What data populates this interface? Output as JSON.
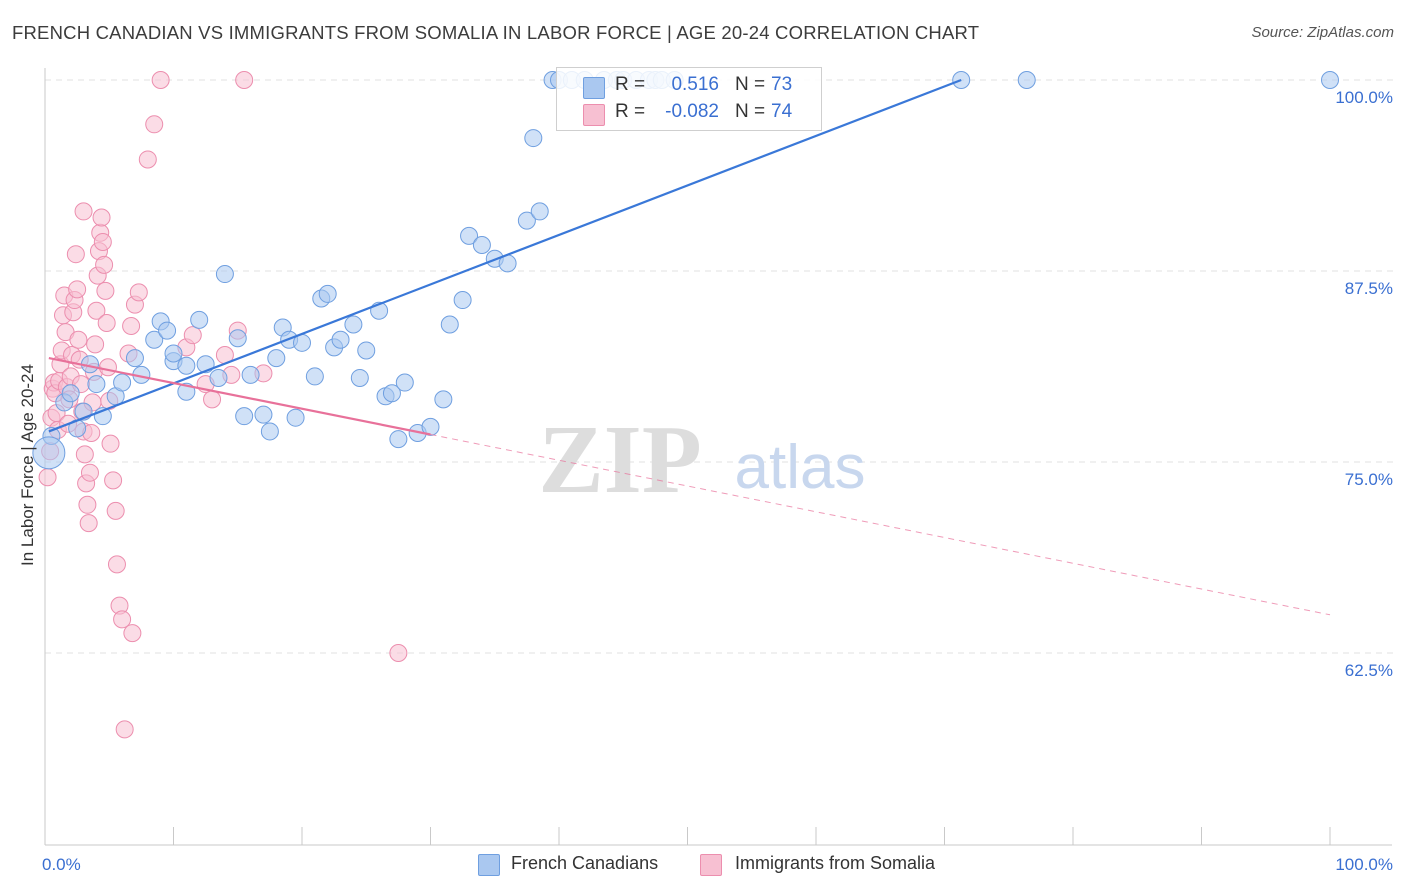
{
  "title": "FRENCH CANADIAN VS IMMIGRANTS FROM SOMALIA IN LABOR FORCE | AGE 20-24 CORRELATION CHART",
  "source": "Source: ZipAtlas.com",
  "watermark": {
    "zip": "ZIP",
    "atlas": "atlas"
  },
  "legend": {
    "r_label": "R =",
    "n_label": "N =",
    "rows": [
      {
        "r": "0.516",
        "n": "73",
        "fill": "#aac8f0",
        "stroke": "#6f9fe0"
      },
      {
        "r": "-0.082",
        "n": "74",
        "fill": "#f7c0d2",
        "stroke": "#ec8eae"
      }
    ]
  },
  "bottom_legend": [
    {
      "label": "French Canadians",
      "fill": "#aac8f0",
      "stroke": "#6f9fe0"
    },
    {
      "label": "Immigrants from Somalia",
      "fill": "#f7c0d2",
      "stroke": "#ec8eae"
    }
  ],
  "chart_data": {
    "type": "scatter",
    "title": "FRENCH CANADIAN VS IMMIGRANTS FROM SOMALIA IN LABOR FORCE | AGE 20-24 CORRELATION CHART",
    "xlabel": "",
    "ylabel": "In Labor Force | Age 20-24",
    "xlim": [
      0,
      100
    ],
    "ylim": [
      51.5,
      101.5
    ],
    "x_tick_labels": [
      {
        "value": 0,
        "label": "0.0%"
      },
      {
        "value": 100,
        "label": "100.0%"
      }
    ],
    "y_tick_labels": [
      {
        "value": 100,
        "label": "100.0%"
      },
      {
        "value": 87.5,
        "label": "87.5%"
      },
      {
        "value": 75,
        "label": "75.0%"
      },
      {
        "value": 62.5,
        "label": "62.5%"
      }
    ],
    "x_minor_ticks": [
      0,
      10,
      20,
      30,
      40,
      50,
      60,
      70,
      80,
      90,
      100
    ],
    "grid": true,
    "colors": {
      "blue": "#3a78d8",
      "pink": "#e8719a",
      "tick_label": "#3a6fd1"
    },
    "series": [
      {
        "name": "French Canadians",
        "r": 0.516,
        "n": 73,
        "trend": {
          "x0": 0.3,
          "y0": 77.0,
          "x1": 71.3,
          "y1": 100.0,
          "dashed_to": null
        },
        "points": [
          [
            0.5,
            76.7
          ],
          [
            1.5,
            78.9
          ],
          [
            2,
            79.5
          ],
          [
            2.5,
            77.2
          ],
          [
            3,
            78.3
          ],
          [
            4,
            80.1
          ],
          [
            3.5,
            81.4
          ],
          [
            4.5,
            78.0
          ],
          [
            5.5,
            79.3
          ],
          [
            6,
            80.2
          ],
          [
            7,
            81.8
          ],
          [
            7.5,
            80.7
          ],
          [
            8.5,
            83.0
          ],
          [
            9,
            84.2
          ],
          [
            10,
            81.6
          ],
          [
            9.5,
            83.6
          ],
          [
            10,
            82.1
          ],
          [
            11,
            81.3
          ],
          [
            11,
            79.6
          ],
          [
            12,
            84.3
          ],
          [
            12.5,
            81.4
          ],
          [
            13.5,
            80.5
          ],
          [
            14,
            87.3
          ],
          [
            15,
            83.1
          ],
          [
            15.5,
            78.0
          ],
          [
            16,
            80.7
          ],
          [
            17,
            78.1
          ],
          [
            17.5,
            77.0
          ],
          [
            18,
            81.8
          ],
          [
            18.5,
            83.8
          ],
          [
            19,
            83.0
          ],
          [
            19.5,
            77.9
          ],
          [
            20,
            82.8
          ],
          [
            21,
            80.6
          ],
          [
            21.5,
            85.7
          ],
          [
            22,
            86.0
          ],
          [
            22.5,
            82.5
          ],
          [
            23,
            83.0
          ],
          [
            24,
            84.0
          ],
          [
            24.5,
            80.5
          ],
          [
            25,
            82.3
          ],
          [
            26,
            84.9
          ],
          [
            26.5,
            79.3
          ],
          [
            27,
            79.5
          ],
          [
            27.5,
            76.5
          ],
          [
            28,
            80.2
          ],
          [
            29,
            76.9
          ],
          [
            30,
            77.3
          ],
          [
            31,
            79.1
          ],
          [
            31.5,
            84.0
          ],
          [
            32.5,
            85.6
          ],
          [
            33,
            89.8
          ],
          [
            34,
            89.2
          ],
          [
            35,
            88.3
          ],
          [
            36,
            88.0
          ],
          [
            37.5,
            90.8
          ],
          [
            38,
            96.2
          ],
          [
            38.5,
            91.4
          ],
          [
            39.5,
            100
          ],
          [
            40,
            100
          ],
          [
            41,
            100
          ],
          [
            42,
            100
          ],
          [
            43.5,
            100
          ],
          [
            44.5,
            100
          ],
          [
            45,
            100
          ],
          [
            46,
            100
          ],
          [
            47,
            100
          ],
          [
            47.5,
            100
          ],
          [
            48,
            100
          ],
          [
            49,
            100
          ],
          [
            71.3,
            100
          ],
          [
            76.4,
            100
          ],
          [
            100,
            100
          ]
        ]
      },
      {
        "name": "Immigrants from Somalia",
        "r": -0.082,
        "n": 74,
        "trend": {
          "x0": 0.3,
          "y0": 81.8,
          "x1": 30.0,
          "y1": 76.8,
          "dashed_to": {
            "x": 100,
            "y": 65.0
          }
        },
        "points": [
          [
            0.2,
            74.0
          ],
          [
            0.4,
            75.7
          ],
          [
            0.5,
            77.9
          ],
          [
            0.6,
            79.8
          ],
          [
            0.7,
            80.2
          ],
          [
            0.8,
            79.5
          ],
          [
            0.9,
            78.2
          ],
          [
            1.0,
            77.1
          ],
          [
            1.1,
            80.3
          ],
          [
            1.2,
            81.4
          ],
          [
            1.3,
            82.3
          ],
          [
            1.4,
            84.6
          ],
          [
            1.5,
            85.9
          ],
          [
            1.6,
            83.5
          ],
          [
            1.7,
            79.9
          ],
          [
            1.8,
            77.5
          ],
          [
            1.9,
            79.1
          ],
          [
            2.0,
            80.6
          ],
          [
            2.1,
            82.0
          ],
          [
            2.2,
            84.8
          ],
          [
            2.3,
            85.6
          ],
          [
            2.4,
            88.6
          ],
          [
            2.5,
            86.3
          ],
          [
            2.6,
            83.0
          ],
          [
            2.7,
            81.7
          ],
          [
            2.8,
            80.1
          ],
          [
            2.9,
            78.3
          ],
          [
            3.0,
            77.0
          ],
          [
            3.1,
            75.5
          ],
          [
            3.2,
            73.6
          ],
          [
            3.3,
            72.2
          ],
          [
            3.4,
            71.0
          ],
          [
            3.5,
            74.3
          ],
          [
            3.6,
            76.9
          ],
          [
            3.7,
            78.9
          ],
          [
            3.8,
            80.9
          ],
          [
            3.9,
            82.7
          ],
          [
            4.0,
            84.9
          ],
          [
            4.1,
            87.2
          ],
          [
            4.2,
            88.8
          ],
          [
            4.3,
            90.0
          ],
          [
            4.4,
            91.0
          ],
          [
            4.5,
            89.4
          ],
          [
            4.6,
            87.9
          ],
          [
            4.7,
            86.2
          ],
          [
            4.8,
            84.1
          ],
          [
            4.9,
            81.2
          ],
          [
            5.0,
            79.0
          ],
          [
            5.1,
            76.2
          ],
          [
            5.3,
            73.8
          ],
          [
            5.5,
            71.8
          ],
          [
            5.6,
            68.3
          ],
          [
            5.8,
            65.6
          ],
          [
            6.0,
            64.7
          ],
          [
            6.2,
            57.5
          ],
          [
            6.8,
            63.8
          ],
          [
            6.5,
            82.1
          ],
          [
            6.7,
            83.9
          ],
          [
            7.0,
            85.3
          ],
          [
            7.3,
            86.1
          ],
          [
            8.0,
            94.8
          ],
          [
            8.5,
            97.1
          ],
          [
            9.0,
            100
          ],
          [
            11.0,
            82.5
          ],
          [
            11.5,
            83.3
          ],
          [
            12.5,
            80.1
          ],
          [
            13.0,
            79.1
          ],
          [
            14.0,
            82.0
          ],
          [
            14.5,
            80.7
          ],
          [
            15.0,
            83.6
          ],
          [
            15.5,
            100
          ],
          [
            17.0,
            80.8
          ],
          [
            27.5,
            62.5
          ],
          [
            3.0,
            91.4
          ]
        ]
      }
    ]
  }
}
